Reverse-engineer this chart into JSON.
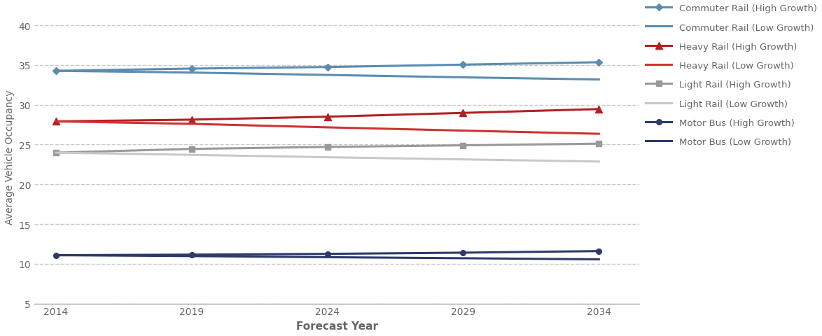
{
  "years": [
    2014,
    2019,
    2024,
    2029,
    2034
  ],
  "motor_bus_high": [
    11.08,
    11.15,
    11.25,
    11.4,
    11.6
  ],
  "motor_bus_low": [
    11.08,
    10.97,
    10.83,
    10.7,
    10.56
  ],
  "light_rail_high": [
    23.98,
    24.45,
    24.7,
    24.9,
    25.11
  ],
  "light_rail_low": [
    23.98,
    23.7,
    23.4,
    23.13,
    22.86
  ],
  "heavy_rail_high": [
    27.91,
    28.13,
    28.5,
    28.98,
    29.46
  ],
  "heavy_rail_low": [
    27.91,
    27.6,
    27.16,
    26.75,
    26.35
  ],
  "commuter_rail_high": [
    34.27,
    34.55,
    34.75,
    35.05,
    35.35
  ],
  "commuter_rail_low": [
    34.27,
    34.05,
    33.75,
    33.45,
    33.18
  ],
  "color_commuter_high": "#5b8db0",
  "color_commuter_low": "#5b8db0",
  "color_heavy_high": "#b22222",
  "color_heavy_low": "#cd3333",
  "color_light_high": "#999999",
  "color_light_low": "#c8c8c8",
  "color_motor_high": "#2b3a6b",
  "color_motor_low": "#2b3a6b",
  "xlabel": "Forecast Year",
  "ylabel": "Average Vehicle Occupancy",
  "ylim": [
    5,
    42
  ],
  "yticks": [
    5,
    10,
    15,
    20,
    25,
    30,
    35,
    40
  ],
  "xticks": [
    2014,
    2019,
    2024,
    2029,
    2034
  ],
  "figsize": [
    11.74,
    4.81
  ],
  "dpi": 100,
  "bg_color": "#ffffff",
  "text_color": "#666666",
  "grid_color": "#c8c8c8"
}
